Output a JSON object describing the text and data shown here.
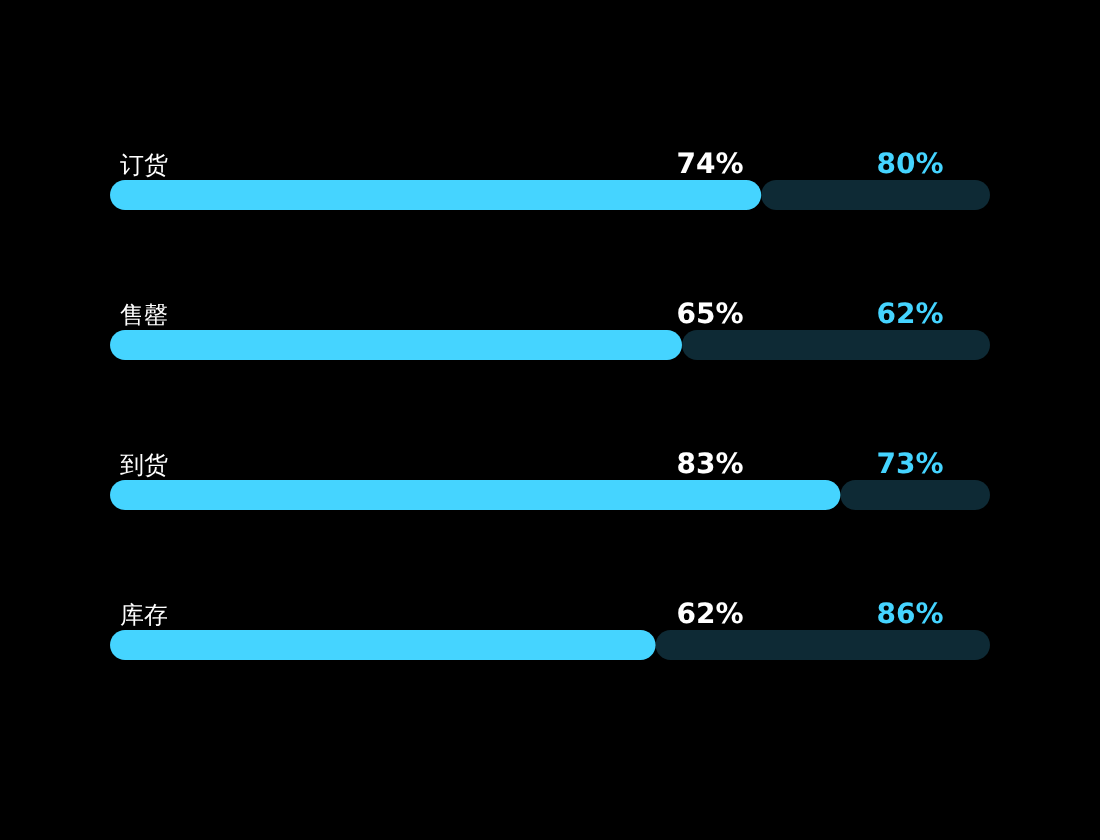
{
  "chart_data": {
    "type": "bar",
    "orientation": "horizontal",
    "stacked": true,
    "categories": [
      "订货",
      "售罄",
      "到货",
      "库存"
    ],
    "series": [
      {
        "color": "#45d4ff",
        "values": [
          74,
          65,
          83,
          62
        ],
        "value_labels": [
          "74%",
          "65%",
          "83%",
          "62%"
        ]
      },
      {
        "color": "#0e2a35",
        "values": [
          26,
          35,
          17,
          38
        ]
      }
    ],
    "annotations": [
      "80%",
      "62%",
      "73%",
      "86%"
    ],
    "xlim": [
      0,
      100
    ],
    "tick_labels": false
  }
}
